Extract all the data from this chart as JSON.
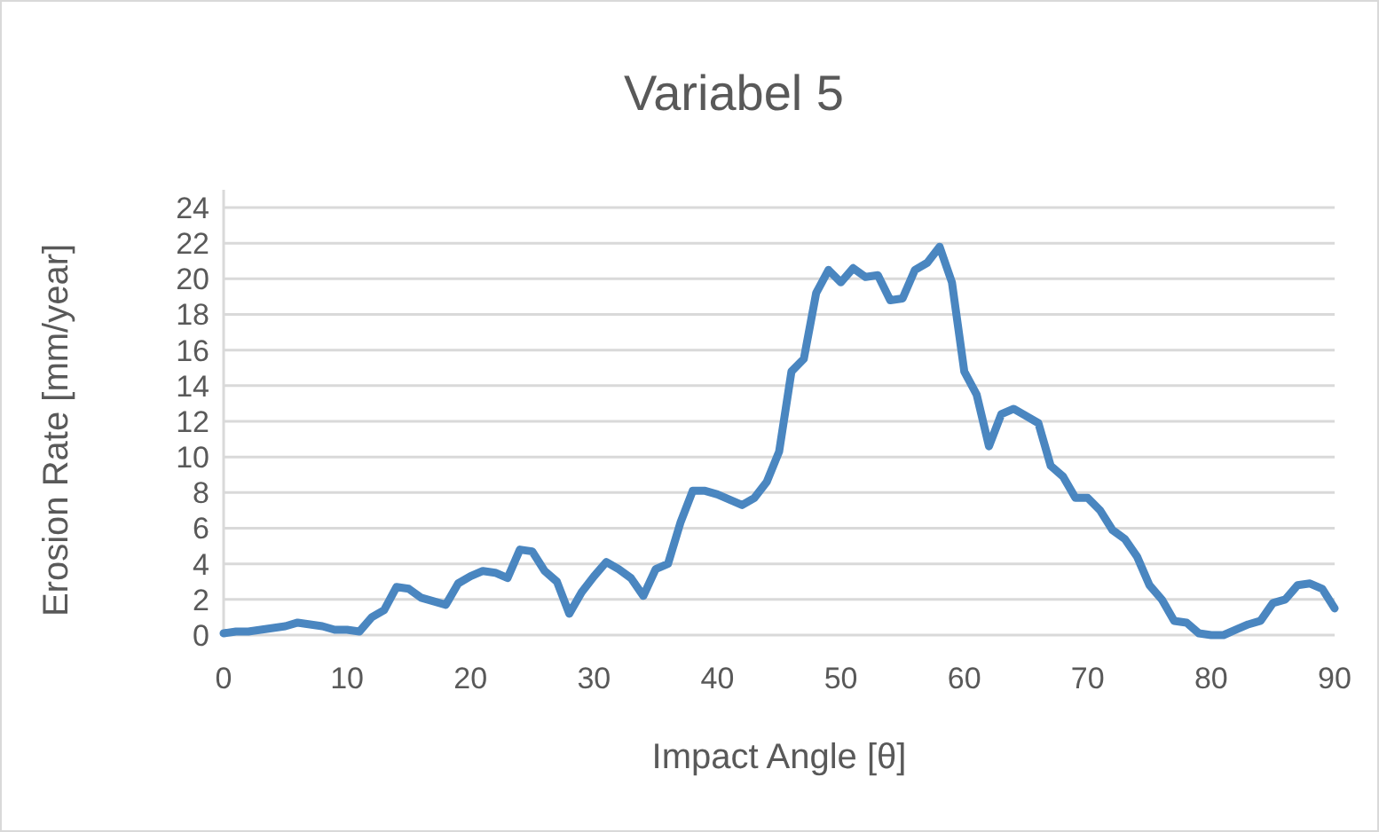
{
  "chart_data": {
    "type": "line",
    "title": "Variabel 5",
    "xlabel": "Impact Angle [θ]",
    "ylabel": "Erosion Rate [mm/year]",
    "x": [
      0,
      1,
      2,
      3,
      4,
      5,
      6,
      7,
      8,
      9,
      10,
      11,
      12,
      13,
      14,
      15,
      16,
      17,
      18,
      19,
      20,
      21,
      22,
      23,
      24,
      25,
      26,
      27,
      28,
      29,
      30,
      31,
      32,
      33,
      34,
      35,
      36,
      37,
      38,
      39,
      40,
      41,
      42,
      43,
      44,
      45,
      46,
      47,
      48,
      49,
      50,
      51,
      52,
      53,
      54,
      55,
      56,
      57,
      58,
      59,
      60,
      61,
      62,
      63,
      64,
      65,
      66,
      67,
      68,
      69,
      70,
      71,
      72,
      73,
      74,
      75,
      76,
      77,
      78,
      79,
      80,
      81,
      82,
      83,
      84,
      85,
      86,
      87,
      88,
      89,
      90
    ],
    "series": [
      {
        "color": "#4a86c0",
        "values": [
          0.1,
          0.2,
          0.2,
          0.3,
          0.4,
          0.5,
          0.7,
          0.6,
          0.5,
          0.3,
          0.3,
          0.2,
          1.0,
          1.4,
          2.7,
          2.6,
          2.1,
          1.9,
          1.7,
          2.9,
          3.3,
          3.6,
          3.5,
          3.2,
          4.8,
          4.7,
          3.6,
          3.0,
          1.2,
          2.4,
          3.3,
          4.1,
          3.7,
          3.2,
          2.2,
          3.7,
          4.0,
          6.3,
          8.1,
          8.1,
          7.9,
          7.6,
          7.3,
          7.7,
          8.6,
          10.3,
          14.8,
          15.5,
          19.2,
          20.5,
          19.8,
          20.6,
          20.1,
          20.2,
          18.8,
          18.9,
          20.5,
          20.9,
          21.8,
          19.8,
          14.8,
          13.5,
          10.6,
          12.4,
          12.7,
          12.3,
          11.9,
          9.5,
          8.9,
          7.7,
          7.7,
          7.0,
          5.9,
          5.4,
          4.4,
          2.8,
          2.0,
          0.8,
          0.7,
          0.1,
          0.0,
          0.0,
          0.3,
          0.6,
          0.8,
          1.8,
          2.0,
          2.8,
          2.9,
          2.6,
          1.5
        ]
      }
    ],
    "xlim": [
      0,
      90
    ],
    "xticks": [
      0,
      10,
      20,
      30,
      40,
      50,
      60,
      70,
      80,
      90
    ],
    "ylim": [
      0,
      24
    ],
    "yticks": [
      0,
      2,
      4,
      6,
      8,
      10,
      12,
      14,
      16,
      18,
      20,
      22,
      24
    ],
    "grid": "y",
    "marker": "none",
    "line_style": "solid"
  }
}
